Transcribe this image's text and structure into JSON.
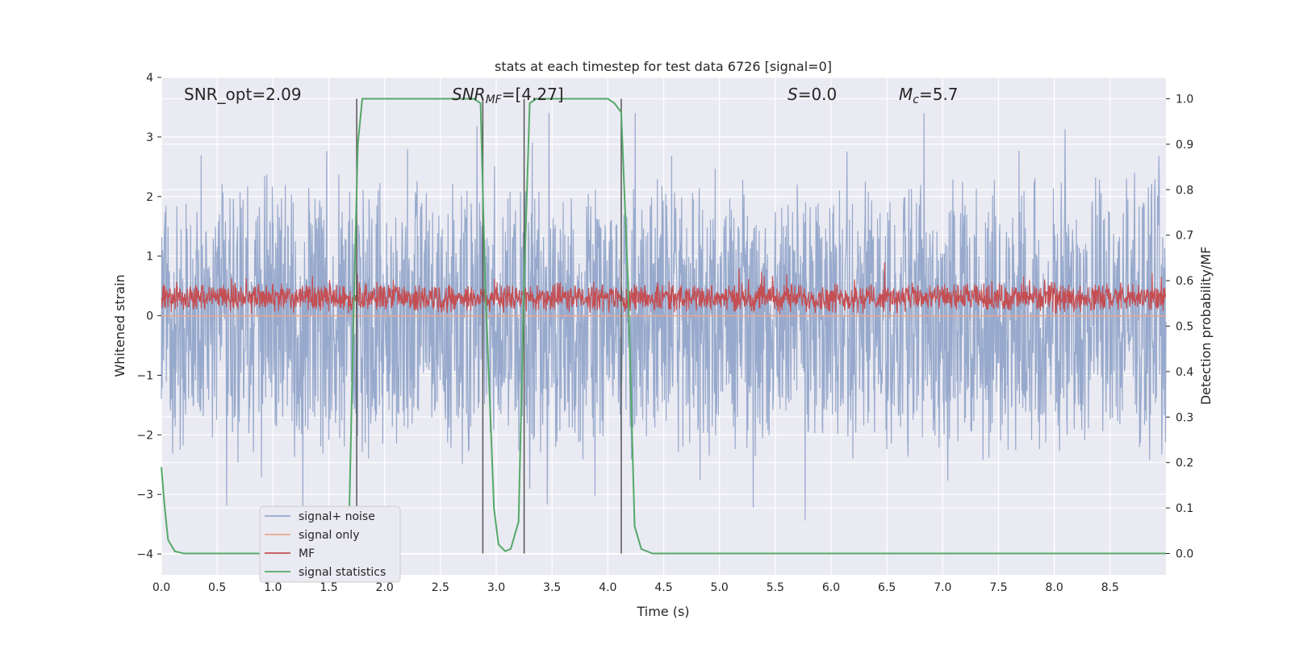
{
  "chart_data": {
    "type": "line",
    "title": "stats at each timestep for test data 6726 [signal=0]",
    "xlabel": "Time (s)",
    "ylabel": "Whitened strain",
    "y2label": "Detection probability/MF",
    "xlim": [
      0.0,
      9.0
    ],
    "ylim": [
      -4.35,
      4.0
    ],
    "y2lim": [
      -0.047,
      1.047
    ],
    "grid": true,
    "legend_position": "lower-left",
    "x_ticks": [
      "0.0",
      "0.5",
      "1.0",
      "1.5",
      "2.0",
      "2.5",
      "3.0",
      "3.5",
      "4.0",
      "4.5",
      "5.0",
      "5.5",
      "6.0",
      "6.5",
      "7.0",
      "7.5",
      "8.0",
      "8.5"
    ],
    "y_ticks": [
      "4",
      "3",
      "2",
      "1",
      "0",
      "−1",
      "−2",
      "−3",
      "−4"
    ],
    "y2_ticks": [
      "1.0",
      "0.9",
      "0.8",
      "0.7",
      "0.6",
      "0.5",
      "0.4",
      "0.3",
      "0.2",
      "0.1",
      "0.0"
    ],
    "annotations": {
      "snr_opt": "SNR_opt=2.09",
      "snr_mf_main": "SNR",
      "snr_mf_sub": "MF",
      "snr_mf_value": "=[4.27]",
      "s_symbol": "S",
      "s_value": "=0.0",
      "mc_symbol": "M",
      "mc_sub": "c",
      "mc_value": "=5.7"
    },
    "series": [
      {
        "name": "signal+ noise",
        "color": "#97a9cc",
        "style": "noise",
        "amplitude_range": [
          -3.5,
          3.4
        ]
      },
      {
        "name": "signal only",
        "color": "#e8a88c",
        "values": [
          [
            0.0,
            0.0
          ],
          [
            9.0,
            0.0
          ]
        ]
      },
      {
        "name": "MF",
        "color": "#c44e52",
        "style": "noise",
        "amplitude_range": [
          0.0,
          0.9
        ],
        "axis": "y2"
      },
      {
        "name": "signal statistics",
        "color": "#55a868",
        "axis": "y2",
        "values": [
          [
            0.0,
            0.19
          ],
          [
            0.03,
            0.1
          ],
          [
            0.06,
            0.03
          ],
          [
            0.12,
            0.005
          ],
          [
            0.2,
            0.0
          ],
          [
            1.62,
            0.0
          ],
          [
            1.68,
            0.05
          ],
          [
            1.72,
            0.5
          ],
          [
            1.76,
            0.9
          ],
          [
            1.8,
            1.0
          ],
          [
            2.8,
            1.0
          ],
          [
            2.86,
            0.99
          ],
          [
            2.9,
            0.6
          ],
          [
            2.98,
            0.1
          ],
          [
            3.02,
            0.02
          ],
          [
            3.08,
            0.005
          ],
          [
            3.13,
            0.01
          ],
          [
            3.2,
            0.07
          ],
          [
            3.25,
            0.6
          ],
          [
            3.3,
            0.99
          ],
          [
            3.36,
            1.0
          ],
          [
            4.0,
            1.0
          ],
          [
            4.06,
            0.99
          ],
          [
            4.12,
            0.97
          ],
          [
            4.18,
            0.6
          ],
          [
            4.24,
            0.06
          ],
          [
            4.3,
            0.01
          ],
          [
            4.4,
            0.0
          ],
          [
            9.0,
            0.0
          ]
        ]
      }
    ],
    "vertical_markers": [
      1.75,
      2.88,
      3.25,
      4.12
    ],
    "marker_color": "#555555"
  }
}
